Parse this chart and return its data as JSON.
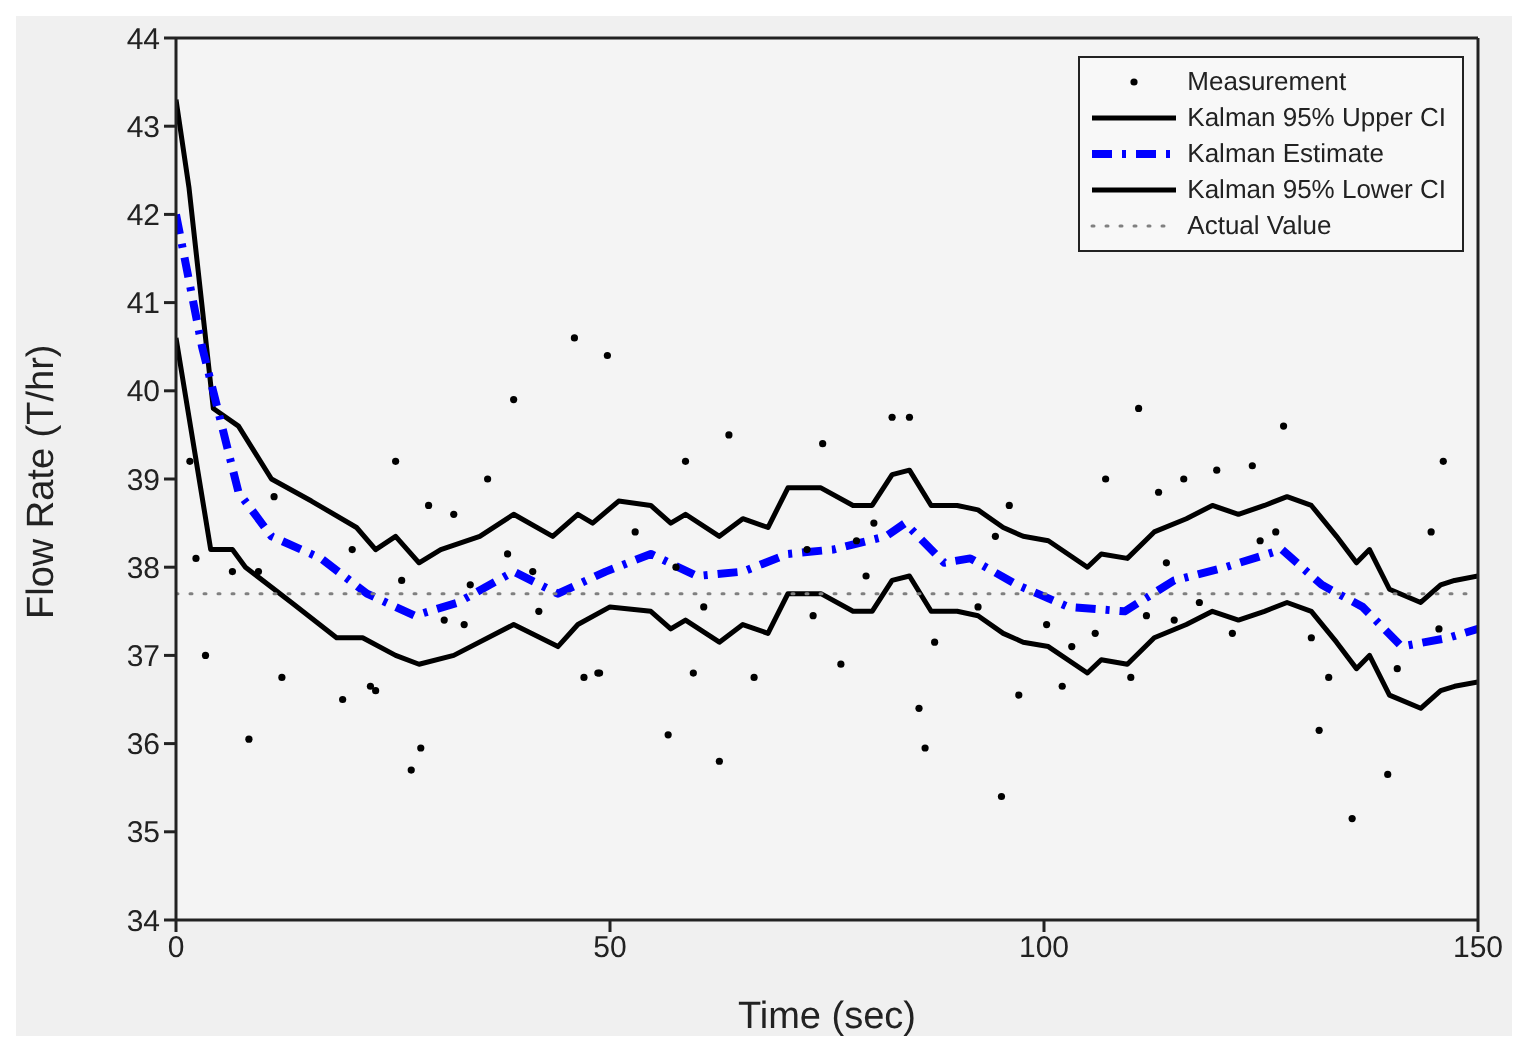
{
  "chart_data": {
    "type": "line",
    "xlabel": "Time (sec)",
    "ylabel": "Flow Rate (T/hr)",
    "xlim": [
      0,
      150
    ],
    "xticks": [
      0,
      50,
      100,
      150
    ],
    "ylim": [
      34,
      44
    ],
    "yticks": [
      34,
      35,
      36,
      37,
      38,
      39,
      40,
      41,
      42,
      43,
      44
    ],
    "legend": "top right",
    "series": [
      {
        "name": "Measurement",
        "type": "scatter",
        "marker": "circle",
        "color": "#000000",
        "x": [
          1.6,
          2.3,
          3.4,
          6.5,
          8.4,
          9.5,
          11.3,
          12.2,
          19.2,
          20.3,
          22.4,
          23,
          25.3,
          26,
          27.1,
          28.2,
          29.1,
          30.9,
          32,
          33.2,
          33.9,
          35.9,
          38.2,
          38.9,
          41.1,
          41.8,
          45.9,
          47,
          48.6,
          48.8,
          49.7,
          52.9,
          56.7,
          57.6,
          58.7,
          59.6,
          60.8,
          62.6,
          63.7,
          66.6,
          72.7,
          73.4,
          74.5,
          76.6,
          78.4,
          79.5,
          80.4,
          82.5,
          84.5,
          85.6,
          86.3,
          87.4,
          92.4,
          94.4,
          95.1,
          96,
          97.1,
          100.3,
          102.1,
          103.2,
          105.9,
          107.1,
          110,
          110.9,
          111.8,
          113.2,
          114.1,
          115,
          116.1,
          117.9,
          119.9,
          121.7,
          124,
          124.9,
          126.7,
          127.6,
          130.8,
          131.7,
          132.8,
          135.5,
          139.6,
          140.7,
          144.6,
          145.5,
          146
        ],
        "values": [
          39.2,
          38.1,
          37.0,
          37.95,
          36.05,
          37.95,
          38.8,
          36.75,
          36.5,
          38.2,
          36.65,
          36.6,
          39.2,
          37.85,
          35.7,
          35.95,
          38.7,
          37.4,
          38.6,
          37.35,
          37.8,
          39.0,
          38.15,
          39.9,
          37.95,
          37.5,
          40.6,
          36.75,
          36.8,
          36.8,
          40.4,
          38.4,
          36.1,
          38.0,
          39.2,
          36.8,
          37.55,
          35.8,
          39.5,
          36.75,
          38.2,
          37.45,
          39.4,
          36.9,
          38.3,
          37.9,
          38.5,
          39.7,
          39.7,
          36.4,
          35.95,
          37.15,
          37.55,
          38.35,
          35.4,
          38.7,
          36.55,
          37.35,
          36.65,
          37.1,
          37.25,
          39.0,
          36.75,
          39.8,
          37.45,
          38.85,
          38.05,
          37.4,
          39.0,
          37.6,
          39.1,
          37.25,
          39.15,
          38.3,
          38.4,
          39.6,
          37.2,
          36.15,
          36.75,
          35.15,
          35.65,
          36.85,
          38.4,
          37.3,
          39.2
        ]
      },
      {
        "name": "Kalman 95% Upper CI",
        "line_style": "solid",
        "color": "#000000",
        "x": [
          0,
          1.5,
          4.3,
          7.2,
          11,
          15.6,
          20.8,
          23,
          25.3,
          28,
          30.5,
          35,
          38.9,
          43.4,
          46.3,
          48,
          51,
          54.7,
          57,
          58.7,
          62.6,
          65.3,
          68.2,
          70.5,
          74.3,
          78,
          80.2,
          82.5,
          84.5,
          87,
          90,
          92.4,
          95.3,
          97.6,
          100.5,
          105,
          106.6,
          109.6,
          112.7,
          116.4,
          119.4,
          122.4,
          125.4,
          128,
          130.8,
          133.7,
          136,
          137.5,
          139.8,
          143.4,
          145.7,
          147.3,
          150
        ],
        "values": [
          43.3,
          42.3,
          39.8,
          39.6,
          39.0,
          38.75,
          38.45,
          38.2,
          38.35,
          38.05,
          38.2,
          38.35,
          38.6,
          38.35,
          38.6,
          38.5,
          38.75,
          38.7,
          38.5,
          38.6,
          38.35,
          38.55,
          38.45,
          38.9,
          38.9,
          38.7,
          38.7,
          39.05,
          39.1,
          38.7,
          38.7,
          38.65,
          38.45,
          38.35,
          38.3,
          38.0,
          38.15,
          38.1,
          38.4,
          38.55,
          38.7,
          38.6,
          38.7,
          38.8,
          38.7,
          38.35,
          38.05,
          38.2,
          37.75,
          37.6,
          37.8,
          37.85,
          37.9
        ]
      },
      {
        "name": "Kalman Estimate",
        "line_style": "dashed",
        "color": "#0000ff",
        "x": [
          0,
          3,
          7.2,
          11,
          16.7,
          22,
          27.5,
          32.5,
          38.9,
          44,
          49.5,
          54.7,
          60,
          65.3,
          70.5,
          75.7,
          81.8,
          84,
          88.5,
          91.5,
          96.9,
          102.8,
          109.3,
          115,
          120.9,
          127.4,
          132,
          136.7,
          141.2,
          146.6,
          150
        ],
        "values": [
          42.0,
          40.5,
          38.85,
          38.35,
          38.1,
          37.7,
          37.45,
          37.6,
          37.95,
          37.7,
          37.95,
          38.15,
          37.9,
          37.95,
          38.15,
          38.2,
          38.35,
          38.5,
          38.05,
          38.1,
          37.8,
          37.55,
          37.5,
          37.85,
          38.0,
          38.2,
          37.8,
          37.55,
          37.1,
          37.2,
          37.3
        ]
      },
      {
        "name": "Kalman 95% Lower CI",
        "line_style": "solid",
        "color": "#000000",
        "x": [
          0,
          4,
          6.5,
          8,
          13.3,
          18.5,
          21.5,
          25.3,
          28,
          32,
          38.9,
          44,
          46.3,
          50,
          54.7,
          57,
          58.7,
          62.6,
          65.3,
          68.2,
          70.5,
          74.3,
          78,
          80.2,
          82.5,
          84.5,
          87,
          90,
          92.4,
          95.3,
          97.6,
          100.5,
          105,
          106.6,
          109.6,
          112.7,
          116.4,
          119.4,
          122.4,
          125.4,
          128,
          130.8,
          133.7,
          136,
          137.5,
          139.8,
          143.4,
          145.7,
          147.3,
          150
        ],
        "values": [
          40.6,
          38.2,
          38.2,
          38.0,
          37.6,
          37.2,
          37.2,
          37.0,
          36.9,
          37.0,
          37.35,
          37.1,
          37.35,
          37.55,
          37.5,
          37.3,
          37.4,
          37.15,
          37.35,
          37.25,
          37.7,
          37.7,
          37.5,
          37.5,
          37.85,
          37.9,
          37.5,
          37.5,
          37.45,
          37.25,
          37.15,
          37.1,
          36.8,
          36.95,
          36.9,
          37.2,
          37.35,
          37.5,
          37.4,
          37.5,
          37.6,
          37.5,
          37.15,
          36.85,
          37.0,
          36.55,
          36.4,
          36.6,
          36.65,
          36.7
        ]
      },
      {
        "name": "Actual Value",
        "line_style": "dotted",
        "color": "#808080",
        "x": [
          0,
          150
        ],
        "values": [
          37.7,
          37.7
        ]
      }
    ]
  }
}
